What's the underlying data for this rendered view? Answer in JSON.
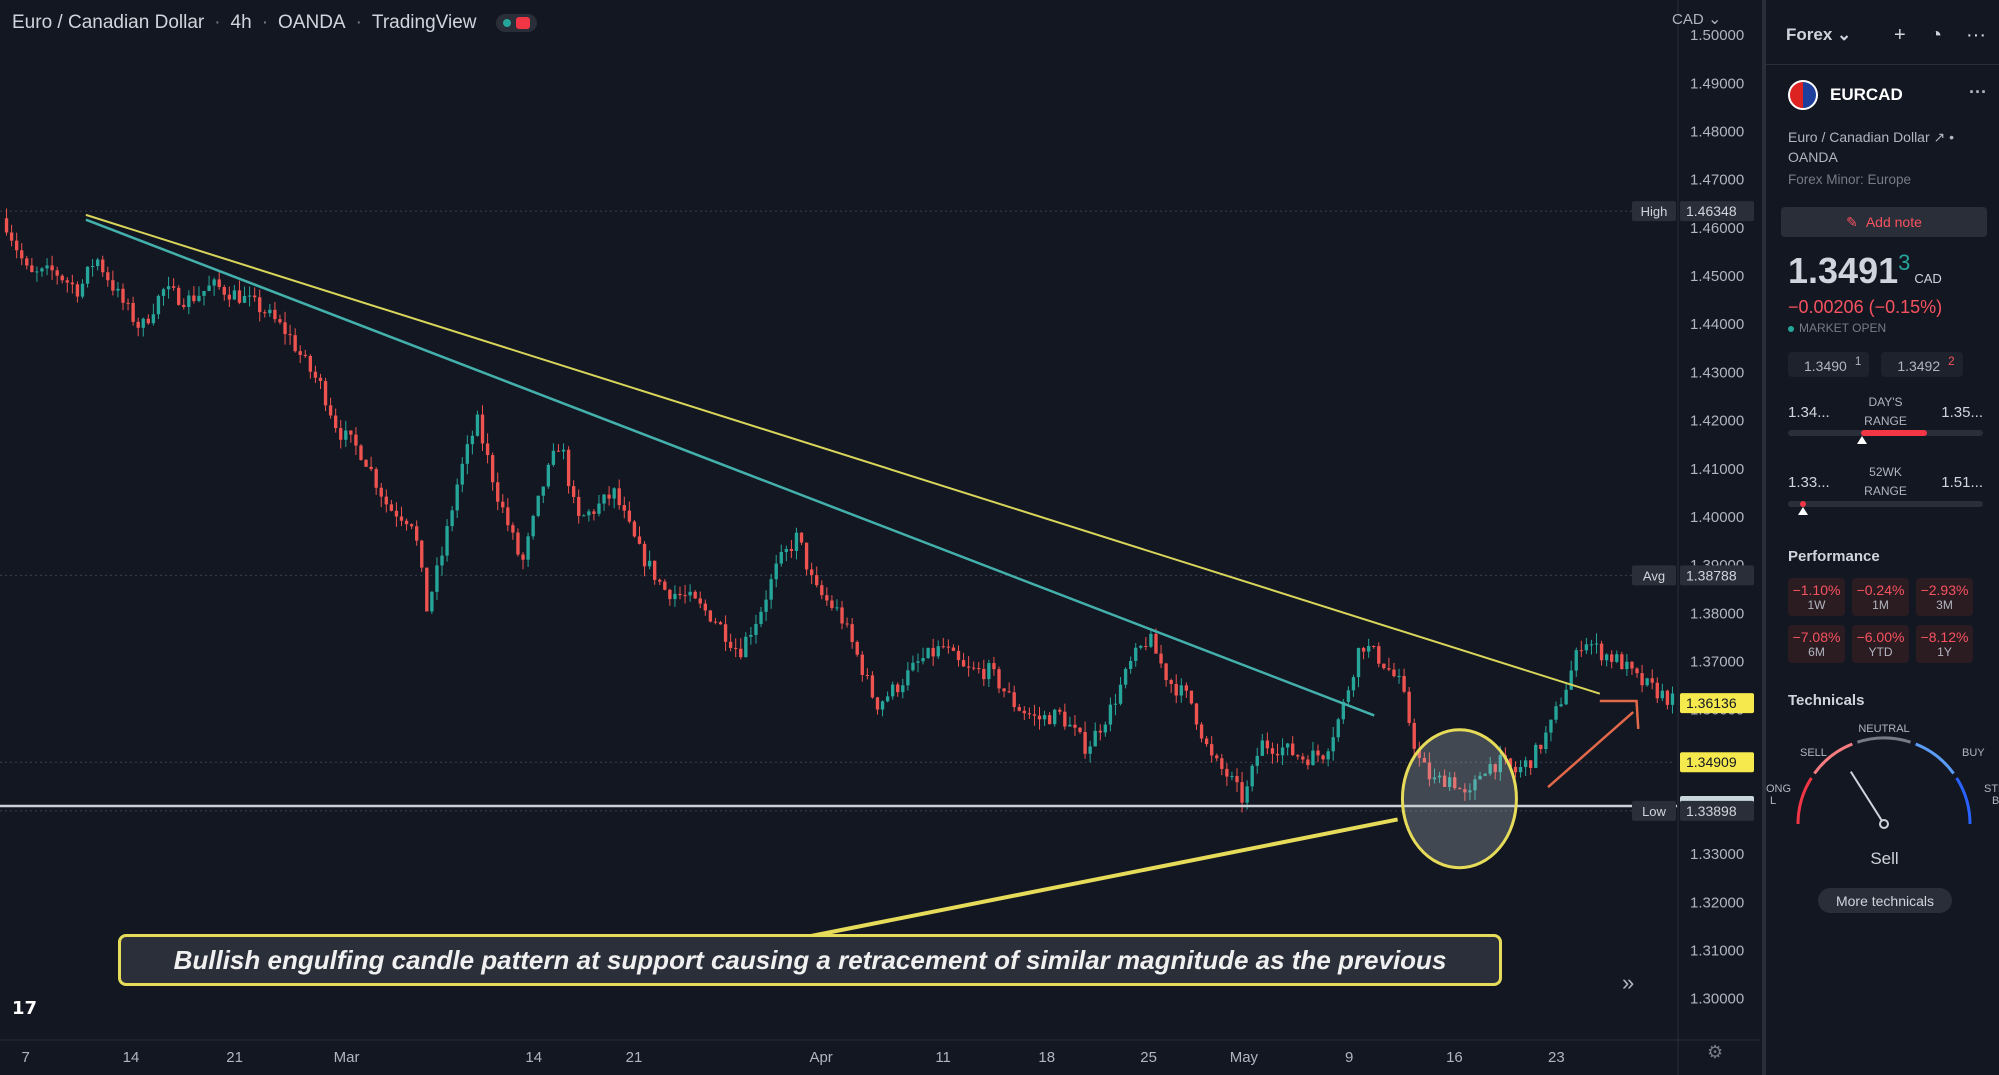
{
  "header": {
    "symbol_name": "Euro / Canadian Dollar",
    "interval": "4h",
    "exchange": "OANDA",
    "platform": "TradingView"
  },
  "axis": {
    "currency": "CAD",
    "gear_icon": "gear-icon"
  },
  "callout": {
    "text": "Bullish engulfing candle pattern at support causing a retracement of similar magnitude as the previous"
  },
  "chart_data": {
    "type": "candlestick",
    "title": "",
    "ylim": [
      1.2935,
      1.5073
    ],
    "y_ticks": [
      1.3,
      1.31,
      1.32,
      1.33,
      1.34,
      1.35,
      1.36,
      1.37,
      1.38,
      1.39,
      1.4,
      1.41,
      1.42,
      1.43,
      1.44,
      1.45,
      1.46,
      1.47,
      1.48,
      1.49,
      1.5
    ],
    "x_tick_labels": [
      "7",
      "14",
      "21",
      "Mar",
      "14",
      "21",
      "Apr",
      "11",
      "18",
      "25",
      "May",
      "9",
      "16",
      "23"
    ],
    "x_tick_pos": [
      0.013,
      0.076,
      0.138,
      0.205,
      0.317,
      0.377,
      0.489,
      0.562,
      0.624,
      0.685,
      0.742,
      0.805,
      0.868,
      0.929
    ],
    "price_path": [
      [
        0.0,
        1.462
      ],
      [
        0.015,
        1.45
      ],
      [
        0.03,
        1.451
      ],
      [
        0.045,
        1.447
      ],
      [
        0.055,
        1.454
      ],
      [
        0.07,
        1.445
      ],
      [
        0.082,
        1.439
      ],
      [
        0.095,
        1.447
      ],
      [
        0.11,
        1.445
      ],
      [
        0.125,
        1.448
      ],
      [
        0.14,
        1.446
      ],
      [
        0.155,
        1.443
      ],
      [
        0.17,
        1.438
      ],
      [
        0.18,
        1.432
      ],
      [
        0.19,
        1.427
      ],
      [
        0.2,
        1.418
      ],
      [
        0.215,
        1.413
      ],
      [
        0.23,
        1.402
      ],
      [
        0.245,
        1.399
      ],
      [
        0.253,
        1.381
      ],
      [
        0.262,
        1.392
      ],
      [
        0.272,
        1.408
      ],
      [
        0.283,
        1.42
      ],
      [
        0.295,
        1.405
      ],
      [
        0.31,
        1.39
      ],
      [
        0.322,
        1.406
      ],
      [
        0.333,
        1.416
      ],
      [
        0.343,
        1.399
      ],
      [
        0.355,
        1.402
      ],
      [
        0.365,
        1.405
      ],
      [
        0.38,
        1.393
      ],
      [
        0.395,
        1.385
      ],
      [
        0.41,
        1.383
      ],
      [
        0.425,
        1.379
      ],
      [
        0.44,
        1.372
      ],
      [
        0.452,
        1.38
      ],
      [
        0.463,
        1.39
      ],
      [
        0.475,
        1.396
      ],
      [
        0.485,
        1.385
      ],
      [
        0.5,
        1.38
      ],
      [
        0.512,
        1.37
      ],
      [
        0.522,
        1.361
      ],
      [
        0.535,
        1.365
      ],
      [
        0.548,
        1.37
      ],
      [
        0.562,
        1.373
      ],
      [
        0.575,
        1.368
      ],
      [
        0.59,
        1.368
      ],
      [
        0.605,
        1.361
      ],
      [
        0.618,
        1.358
      ],
      [
        0.632,
        1.359
      ],
      [
        0.648,
        1.352
      ],
      [
        0.662,
        1.36
      ],
      [
        0.675,
        1.37
      ],
      [
        0.685,
        1.375
      ],
      [
        0.697,
        1.366
      ],
      [
        0.71,
        1.362
      ],
      [
        0.722,
        1.35
      ],
      [
        0.733,
        1.346
      ],
      [
        0.742,
        1.341
      ],
      [
        0.752,
        1.353
      ],
      [
        0.765,
        1.352
      ],
      [
        0.778,
        1.35
      ],
      [
        0.79,
        1.351
      ],
      [
        0.8,
        1.359
      ],
      [
        0.812,
        1.374
      ],
      [
        0.825,
        1.37
      ],
      [
        0.836,
        1.365
      ],
      [
        0.846,
        1.35
      ],
      [
        0.855,
        1.345
      ],
      [
        0.866,
        1.346
      ],
      [
        0.876,
        1.341
      ],
      [
        0.885,
        1.348
      ],
      [
        0.895,
        1.349
      ],
      [
        0.905,
        1.347
      ],
      [
        0.915,
        1.35
      ],
      [
        0.925,
        1.356
      ],
      [
        0.935,
        1.365
      ],
      [
        0.945,
        1.375
      ],
      [
        0.955,
        1.372
      ],
      [
        0.967,
        1.37
      ],
      [
        0.978,
        1.366
      ],
      [
        0.988,
        1.364
      ],
      [
        1.0,
        1.3615
      ]
    ],
    "trendline_upper": {
      "x": [
        0.049,
        0.955
      ],
      "y": [
        1.4627,
        1.3633
      ]
    },
    "trendline_lower": {
      "x": [
        0.049,
        0.82
      ],
      "y": [
        1.4617,
        1.3588
      ]
    },
    "support_line": {
      "y": 1.34
    },
    "price_labels": [
      {
        "label": "High",
        "value": "1.46348",
        "y": 1.46348
      },
      {
        "label": "Avg",
        "value": "1.38788",
        "y": 1.38788
      },
      {
        "label": "",
        "value": "1.36136",
        "y": 1.36136
      },
      {
        "label": "",
        "value": "1.34909",
        "y": 1.34909
      },
      {
        "label": "",
        "value": "1.34000",
        "y": 1.34
      },
      {
        "label": "Low",
        "value": "1.33898",
        "y": 1.33898
      }
    ],
    "colors": {
      "up": "#26a69a",
      "down": "#ef5350",
      "trend_upper": "#d8d55b",
      "trend_lower": "#43b0ac",
      "support": "#c9d1d6",
      "highlight": "#e6dc5a",
      "arrow": "#e2684a"
    }
  },
  "sidebar": {
    "watchlist_name": "Forex",
    "symbol": "EURCAD",
    "description": "Euro / Canadian Dollar",
    "exchange": "OANDA",
    "category": "Forex Minor: Europe",
    "add_note": "Add note",
    "price_main": "1.3491",
    "price_sup": "3",
    "price_currency": "CAD",
    "change": "−0.00206 (−0.15%)",
    "market_status": "MARKET OPEN",
    "bid": "1.3490",
    "bid_sup": "1",
    "ask": "1.3492",
    "ask_sup": "2",
    "days_range": {
      "low": "1.34...",
      "label1": "DAY'S",
      "label2": "RANGE",
      "high": "1.35..."
    },
    "wk52_range": {
      "low": "1.33...",
      "label1": "52WK",
      "label2": "RANGE",
      "high": "1.51..."
    },
    "performance_title": "Performance",
    "performance": [
      {
        "value": "−1.10%",
        "period": "1W"
      },
      {
        "value": "−0.24%",
        "period": "1M"
      },
      {
        "value": "−2.93%",
        "period": "3M"
      },
      {
        "value": "−7.08%",
        "period": "6M"
      },
      {
        "value": "−6.00%",
        "period": "YTD"
      },
      {
        "value": "−8.12%",
        "period": "1Y"
      }
    ],
    "technicals_title": "Technicals",
    "gauge": {
      "strong_sell": "ONG\nL",
      "sell": "SELL",
      "neutral": "NEUTRAL",
      "buy": "BUY",
      "strong_buy": "STR\nB",
      "result": "Sell",
      "level": 0.32
    },
    "more_technicals": "More technicals"
  }
}
